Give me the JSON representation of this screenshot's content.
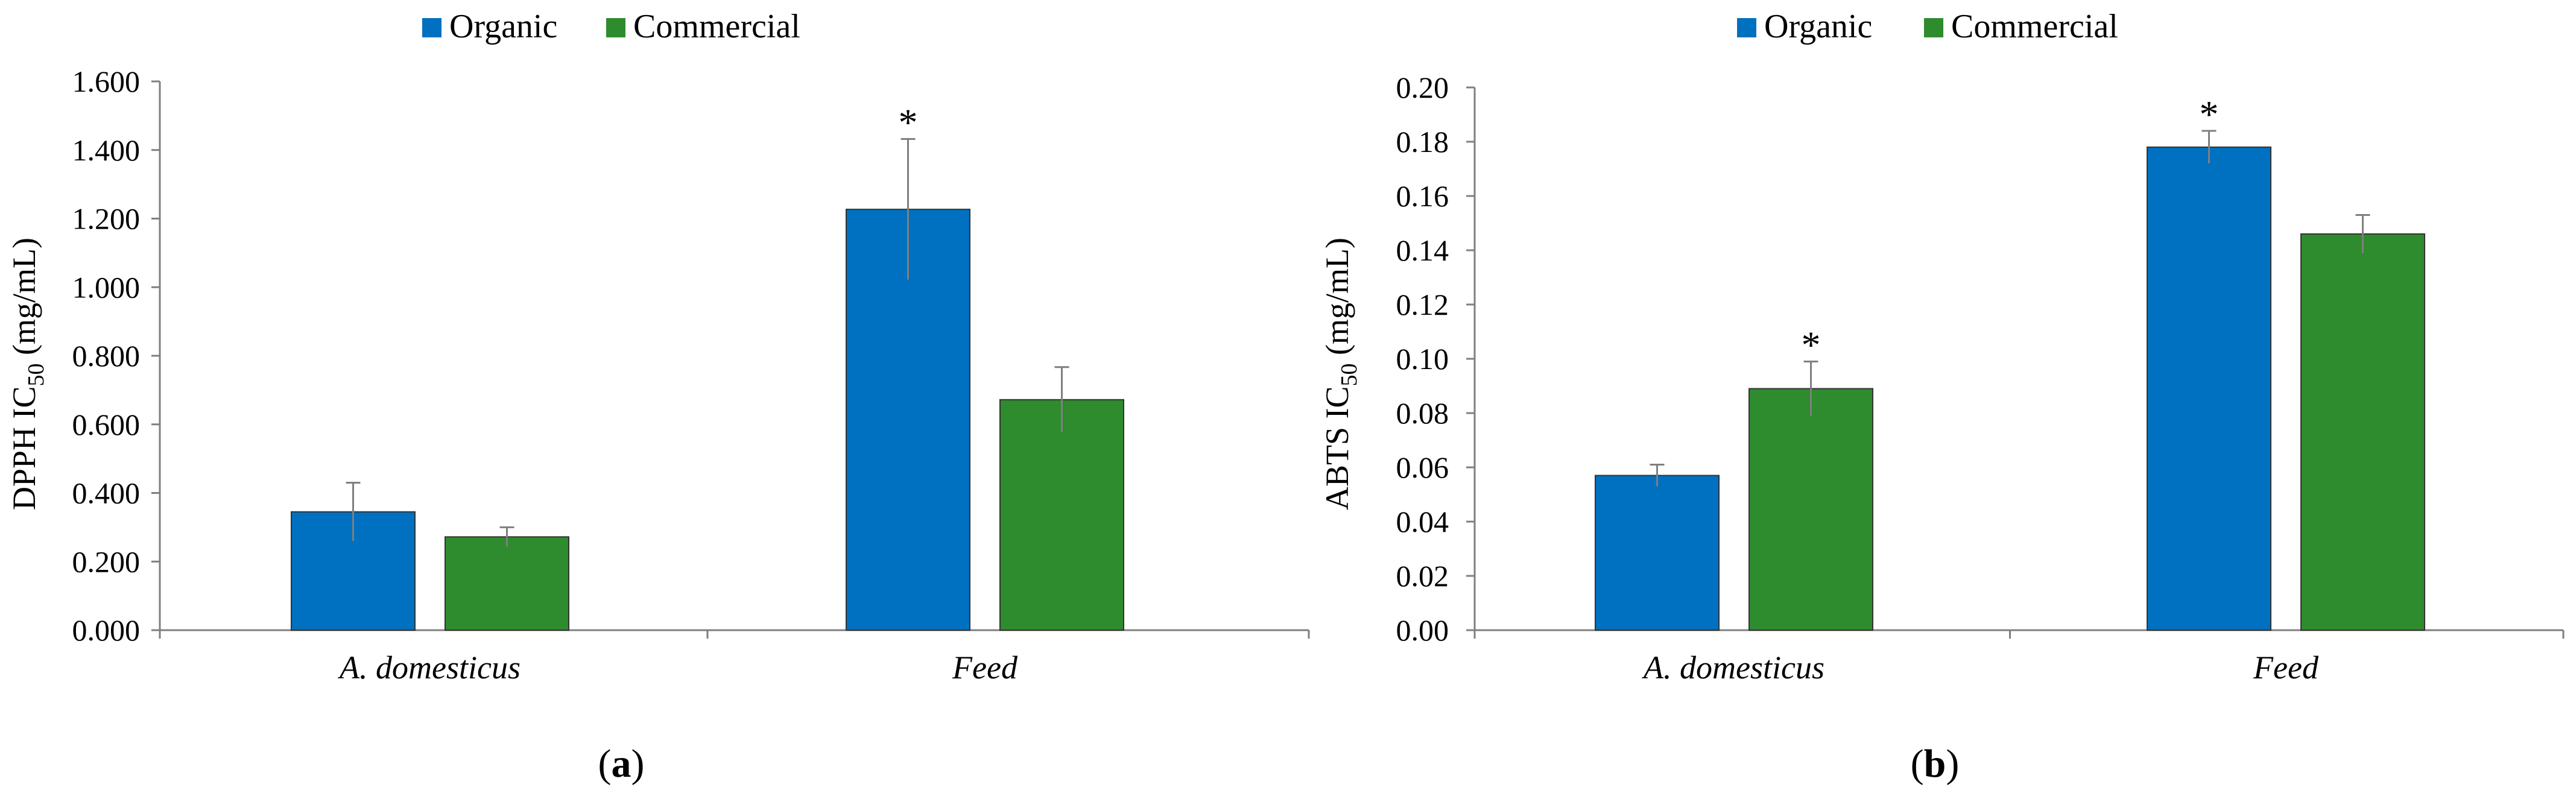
{
  "chart_data": [
    {
      "type": "bar",
      "panel": "a",
      "title": "",
      "categories": [
        "A. domesticus",
        "Feed"
      ],
      "series": [
        {
          "name": "Organic",
          "color": "#0070c0",
          "values": [
            0.345,
            1.227
          ],
          "errors": [
            0.085,
            0.205
          ],
          "significance": [
            "",
            "*"
          ]
        },
        {
          "name": "Commercial",
          "color": "#2e8b2e",
          "values": [
            0.272,
            0.672
          ],
          "errors": [
            0.028,
            0.095
          ],
          "significance": [
            "",
            ""
          ]
        }
      ],
      "ylabel_main": "DPPH IC",
      "ylabel_sub": "50",
      "ylabel_unit": " (mg/mL)",
      "xlabel": "",
      "ylim": [
        0,
        1.6
      ],
      "yticks": [
        "0.000",
        "0.200",
        "0.400",
        "0.600",
        "0.800",
        "1.000",
        "1.200",
        "1.400",
        "1.600"
      ],
      "legend_position": "top",
      "panel_label_text": "a"
    },
    {
      "type": "bar",
      "panel": "b",
      "title": "",
      "categories": [
        "A. domesticus",
        "Feed"
      ],
      "series": [
        {
          "name": "Organic",
          "color": "#0070c0",
          "values": [
            0.057,
            0.178
          ],
          "errors": [
            0.004,
            0.006
          ],
          "significance": [
            "",
            "*"
          ]
        },
        {
          "name": "Commercial",
          "color": "#2e8b2e",
          "values": [
            0.089,
            0.146
          ],
          "errors": [
            0.01,
            0.007
          ],
          "significance": [
            "*",
            ""
          ]
        }
      ],
      "ylabel_main": "ABTS IC",
      "ylabel_sub": "50",
      "ylabel_unit": " (mg/mL)",
      "xlabel": "",
      "ylim": [
        0,
        0.2
      ],
      "yticks": [
        "0.00",
        "0.02",
        "0.04",
        "0.06",
        "0.08",
        "0.10",
        "0.12",
        "0.14",
        "0.16",
        "0.18",
        "0.20"
      ],
      "legend_position": "top",
      "panel_label_text": "b"
    }
  ]
}
